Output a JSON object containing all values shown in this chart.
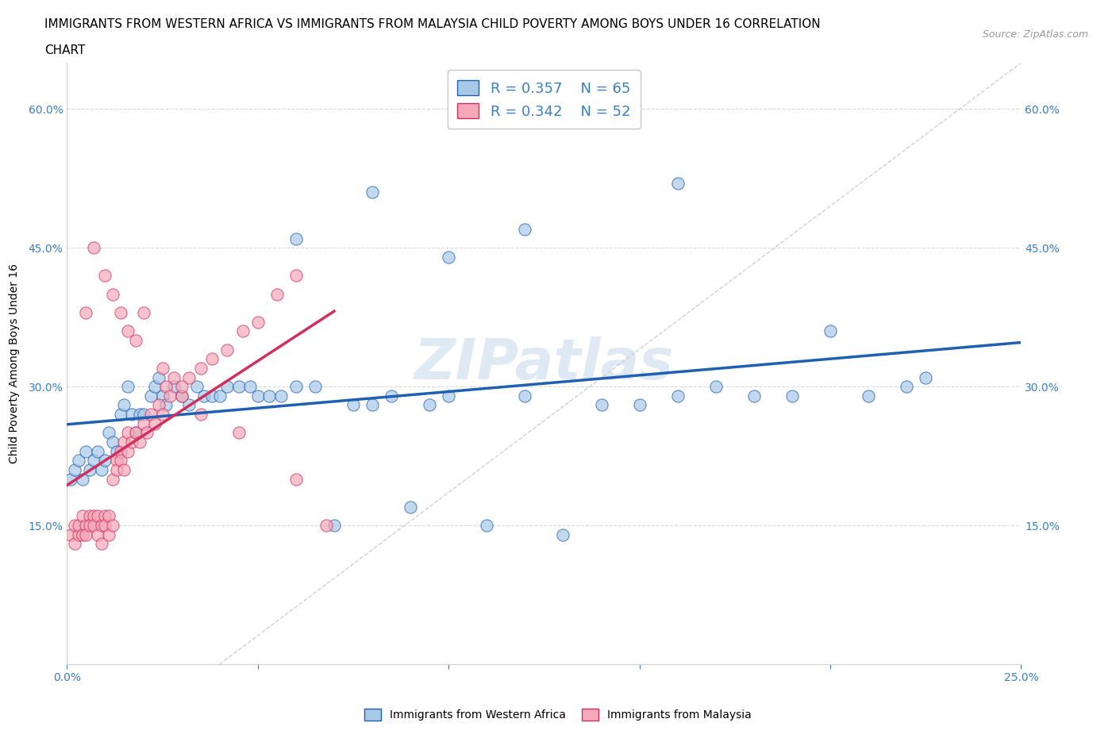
{
  "title_line1": "IMMIGRANTS FROM WESTERN AFRICA VS IMMIGRANTS FROM MALAYSIA CHILD POVERTY AMONG BOYS UNDER 16 CORRELATION",
  "title_line2": "CHART",
  "source": "Source: ZipAtlas.com",
  "ylabel": "Child Poverty Among Boys Under 16",
  "xlim": [
    0.0,
    0.25
  ],
  "ylim": [
    0.0,
    0.65
  ],
  "xticks": [
    0.0,
    0.05,
    0.1,
    0.15,
    0.2,
    0.25
  ],
  "yticks": [
    0.0,
    0.15,
    0.3,
    0.45,
    0.6
  ],
  "blue_color": "#a8c8e8",
  "pink_color": "#f4a8b8",
  "blue_line_color": "#2060b0",
  "pink_line_color": "#d03060",
  "legend_label_blue": "Immigrants from Western Africa",
  "legend_label_pink": "Immigrants from Malaysia",
  "blue_scatter_x": [
    0.001,
    0.002,
    0.003,
    0.004,
    0.005,
    0.006,
    0.007,
    0.008,
    0.009,
    0.01,
    0.011,
    0.012,
    0.013,
    0.014,
    0.015,
    0.016,
    0.017,
    0.018,
    0.019,
    0.02,
    0.022,
    0.023,
    0.024,
    0.025,
    0.026,
    0.028,
    0.03,
    0.032,
    0.034,
    0.036,
    0.038,
    0.04,
    0.042,
    0.045,
    0.048,
    0.05,
    0.053,
    0.056,
    0.06,
    0.065,
    0.07,
    0.075,
    0.08,
    0.085,
    0.09,
    0.095,
    0.1,
    0.11,
    0.12,
    0.13,
    0.14,
    0.15,
    0.16,
    0.17,
    0.18,
    0.19,
    0.2,
    0.21,
    0.22,
    0.225,
    0.06,
    0.08,
    0.1,
    0.12,
    0.16
  ],
  "blue_scatter_y": [
    0.2,
    0.21,
    0.22,
    0.2,
    0.23,
    0.21,
    0.22,
    0.23,
    0.21,
    0.22,
    0.25,
    0.24,
    0.23,
    0.27,
    0.28,
    0.3,
    0.27,
    0.25,
    0.27,
    0.27,
    0.29,
    0.3,
    0.31,
    0.29,
    0.28,
    0.3,
    0.29,
    0.28,
    0.3,
    0.29,
    0.29,
    0.29,
    0.3,
    0.3,
    0.3,
    0.29,
    0.29,
    0.29,
    0.3,
    0.3,
    0.15,
    0.28,
    0.28,
    0.29,
    0.17,
    0.28,
    0.29,
    0.15,
    0.29,
    0.14,
    0.28,
    0.28,
    0.29,
    0.3,
    0.29,
    0.29,
    0.36,
    0.29,
    0.3,
    0.31,
    0.46,
    0.51,
    0.44,
    0.47,
    0.52
  ],
  "pink_scatter_x": [
    0.001,
    0.002,
    0.002,
    0.003,
    0.003,
    0.004,
    0.004,
    0.005,
    0.005,
    0.006,
    0.006,
    0.007,
    0.007,
    0.008,
    0.008,
    0.009,
    0.009,
    0.01,
    0.01,
    0.011,
    0.011,
    0.012,
    0.012,
    0.013,
    0.013,
    0.014,
    0.014,
    0.015,
    0.015,
    0.016,
    0.016,
    0.017,
    0.018,
    0.019,
    0.02,
    0.021,
    0.022,
    0.023,
    0.024,
    0.025,
    0.026,
    0.027,
    0.028,
    0.03,
    0.032,
    0.035,
    0.038,
    0.042,
    0.046,
    0.05,
    0.055,
    0.06
  ],
  "pink_scatter_y": [
    0.14,
    0.15,
    0.13,
    0.14,
    0.15,
    0.16,
    0.14,
    0.15,
    0.14,
    0.16,
    0.15,
    0.16,
    0.15,
    0.14,
    0.16,
    0.15,
    0.13,
    0.16,
    0.15,
    0.14,
    0.16,
    0.15,
    0.2,
    0.22,
    0.21,
    0.23,
    0.22,
    0.24,
    0.21,
    0.25,
    0.23,
    0.24,
    0.25,
    0.24,
    0.26,
    0.25,
    0.27,
    0.26,
    0.28,
    0.27,
    0.3,
    0.29,
    0.31,
    0.29,
    0.31,
    0.32,
    0.33,
    0.34,
    0.36,
    0.37,
    0.4,
    0.42
  ],
  "pink_high_x": [
    0.005,
    0.007,
    0.01,
    0.012,
    0.014,
    0.016,
    0.018,
    0.02,
    0.025,
    0.03,
    0.035,
    0.045,
    0.06,
    0.068
  ],
  "pink_high_y": [
    0.38,
    0.45,
    0.42,
    0.4,
    0.38,
    0.36,
    0.35,
    0.38,
    0.32,
    0.3,
    0.27,
    0.25,
    0.2,
    0.15
  ]
}
